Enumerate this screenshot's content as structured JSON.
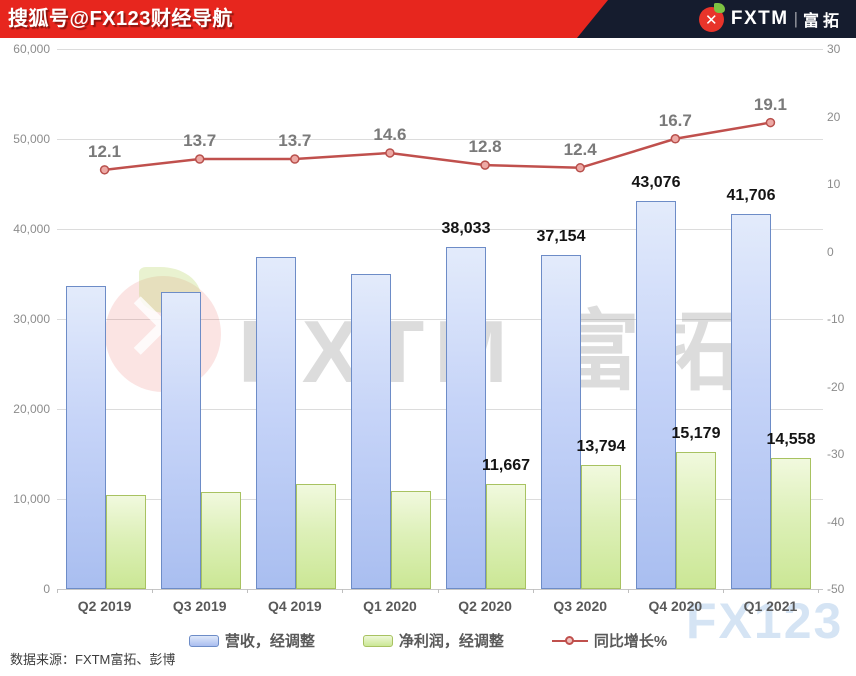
{
  "header": {
    "title": "搜狐号@FX123财经导航",
    "brand": {
      "name": "FXTM",
      "divider": "|",
      "cn": "富拓"
    }
  },
  "watermarks": {
    "center_logo": "fxtm-logo",
    "center_text": "FXTM 富拓",
    "corner_text": "FX123"
  },
  "footer": {
    "source": "数据来源：FXTM富拓、彭博"
  },
  "chart_data": {
    "type": "bar",
    "subtype": "grouped bars with secondary-axis line",
    "categories": [
      "Q2 2019",
      "Q3 2019",
      "Q4 2019",
      "Q1 2020",
      "Q2 2020",
      "Q3 2020",
      "Q4 2020",
      "Q1 2021"
    ],
    "series": [
      {
        "name": "营收，经调整",
        "type": "bar",
        "axis": "left",
        "color": "#aabef0",
        "border_color": "#6d8cc7",
        "values": [
          33700,
          33050,
          36900,
          35000,
          38033,
          37154,
          43076,
          41706
        ],
        "data_labels": [
          null,
          null,
          null,
          null,
          "38,033",
          "37,154",
          "43,076",
          "41,706"
        ]
      },
      {
        "name": "净利润，经调整",
        "type": "bar",
        "axis": "left",
        "color": "#cbe795",
        "border_color": "#a8c261",
        "values": [
          10500,
          10800,
          11650,
          10850,
          11667,
          13794,
          15179,
          14558
        ],
        "data_labels": [
          null,
          null,
          null,
          null,
          "11,667",
          "13,794",
          "15,179",
          "14,558"
        ]
      },
      {
        "name": "同比增长%",
        "type": "line",
        "axis": "right",
        "color": "#c0504d",
        "values": [
          12.1,
          13.7,
          13.7,
          14.6,
          12.8,
          12.4,
          16.7,
          19.1
        ],
        "data_labels": [
          "12.1",
          "13.7",
          "13.7",
          "14.6",
          "12.8",
          "12.4",
          "16.7",
          "19.1"
        ]
      }
    ],
    "left_axis": {
      "min": 0,
      "max": 60000,
      "tick_step": 10000,
      "tick_labels": [
        "0",
        "10,000",
        "20,000",
        "30,000",
        "40,000",
        "50,000",
        "60,000"
      ]
    },
    "right_axis": {
      "min": -50,
      "max": 30,
      "tick_step": 10,
      "tick_labels": [
        "-50",
        "-40",
        "-30",
        "-20",
        "-10",
        "0",
        "10",
        "20",
        "30"
      ]
    },
    "grid": "horizontal",
    "legend_position": "bottom"
  }
}
